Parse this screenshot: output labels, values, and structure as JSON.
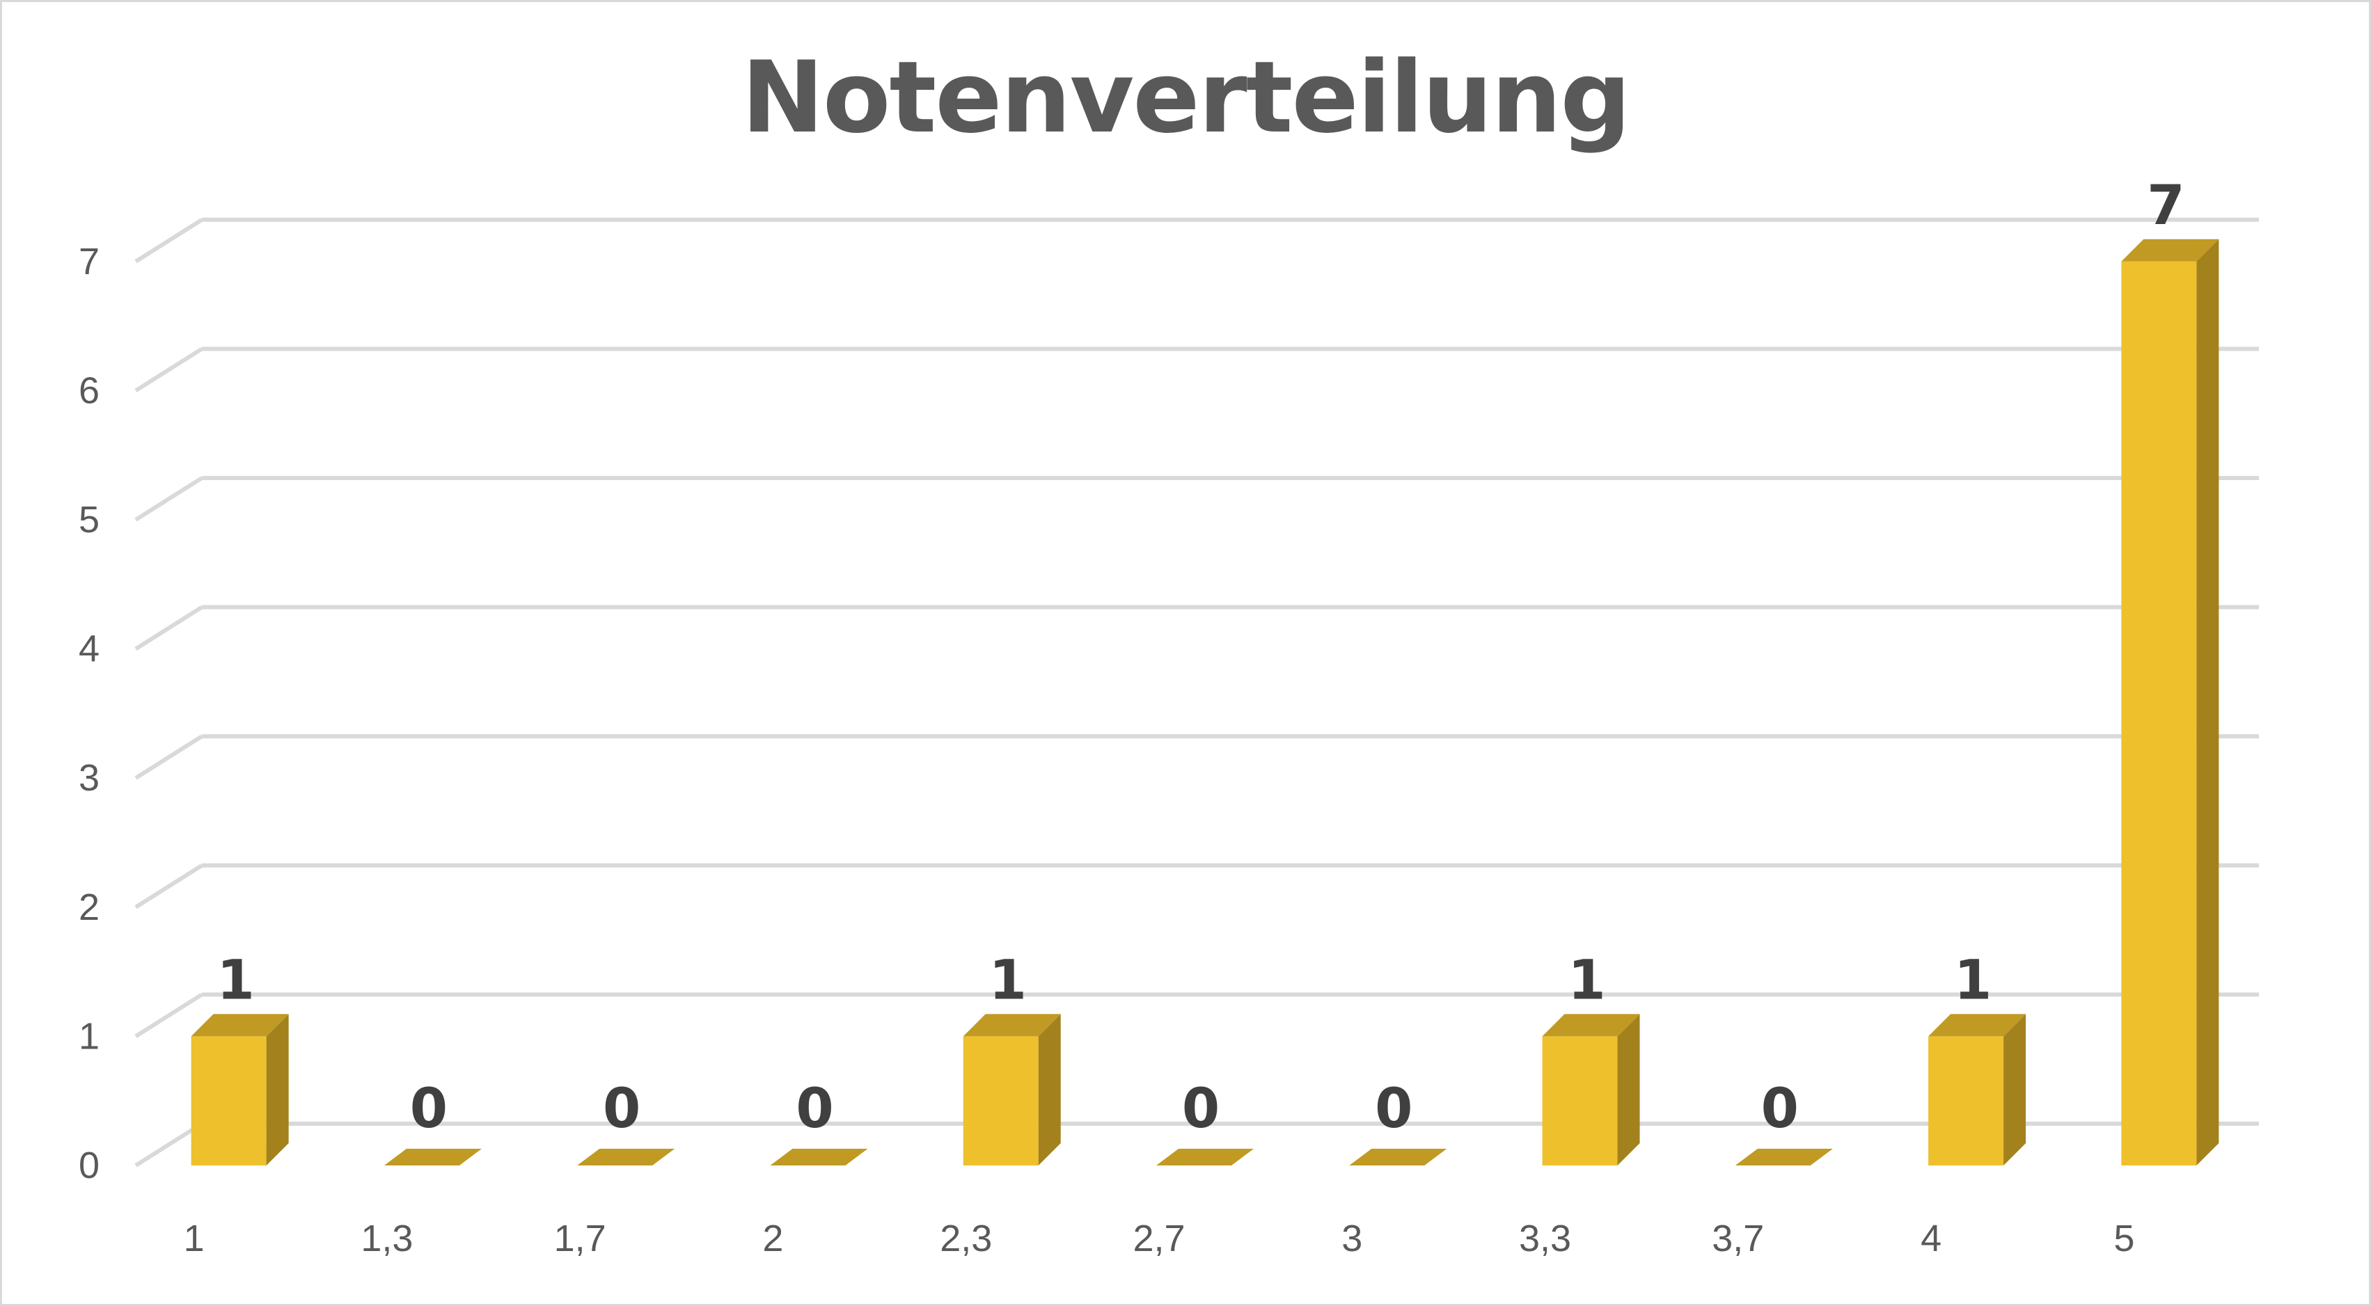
{
  "chart_data": {
    "type": "bar",
    "title": "Notenverteilung",
    "xlabel": "",
    "ylabel": "",
    "categories": [
      "1",
      "1,3",
      "1,7",
      "2",
      "2,3",
      "2,7",
      "3",
      "3,3",
      "3,7",
      "4",
      "5"
    ],
    "values": [
      1,
      0,
      0,
      0,
      1,
      0,
      0,
      1,
      0,
      1,
      7
    ],
    "ylim": [
      0,
      7
    ],
    "yticks": [
      0,
      1,
      2,
      3,
      4,
      5,
      6,
      7
    ],
    "grid": true,
    "data_labels": true,
    "legend": "none",
    "style": "3d-column",
    "colors": {
      "bar_front": "#EEC02C",
      "bar_side": "#A3821D",
      "bar_top": "#C09A22",
      "grid": "#d9d9d9",
      "text": "#595959",
      "label": "#404040"
    }
  }
}
